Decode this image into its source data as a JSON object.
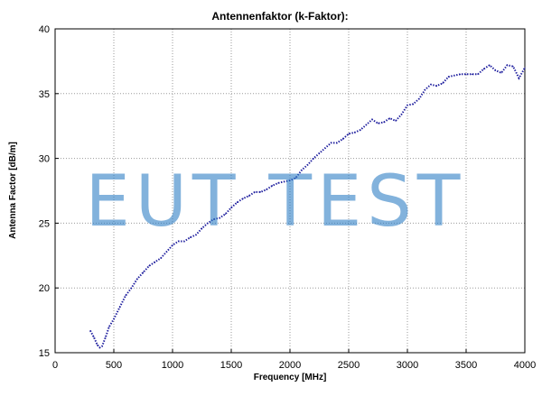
{
  "watermark": "EUT TEST",
  "chart_data": {
    "type": "line",
    "title": "Antennenfaktor (k-Faktor):",
    "xlabel": "Frequency [MHz]",
    "ylabel": "Antenna Factor [dB/m]",
    "xlim": [
      0,
      4000
    ],
    "ylim": [
      15,
      40
    ],
    "xticks": [
      0,
      500,
      1000,
      1500,
      2000,
      2500,
      3000,
      3500,
      4000
    ],
    "yticks": [
      15,
      20,
      25,
      30,
      35,
      40
    ],
    "grid": true,
    "line_style": "dotted",
    "line_color": "#1a1a9c",
    "series": [
      {
        "x": [
          300,
          330,
          360,
          380,
          400,
          430,
          460,
          500,
          550,
          600,
          650,
          700,
          750,
          800,
          850,
          900,
          950,
          1000,
          1050,
          1100,
          1150,
          1200,
          1250,
          1300,
          1350,
          1400,
          1450,
          1500,
          1550,
          1600,
          1650,
          1700,
          1750,
          1800,
          1850,
          1900,
          1950,
          2000,
          2050,
          2100,
          2150,
          2200,
          2250,
          2300,
          2350,
          2400,
          2450,
          2500,
          2550,
          2600,
          2650,
          2700,
          2750,
          2800,
          2850,
          2900,
          2950,
          3000,
          3050,
          3100,
          3150,
          3200,
          3250,
          3300,
          3350,
          3400,
          3450,
          3500,
          3550,
          3600,
          3650,
          3700,
          3750,
          3800,
          3850,
          3900,
          3950,
          4000
        ],
        "y": [
          16.7,
          16.2,
          15.6,
          15.4,
          15.5,
          16.2,
          17.0,
          17.6,
          18.5,
          19.4,
          20.0,
          20.7,
          21.2,
          21.7,
          22.0,
          22.3,
          22.8,
          23.3,
          23.6,
          23.6,
          23.9,
          24.1,
          24.6,
          25.0,
          25.3,
          25.4,
          25.7,
          26.2,
          26.6,
          26.9,
          27.1,
          27.4,
          27.4,
          27.6,
          27.9,
          28.1,
          28.2,
          28.3,
          28.5,
          29.1,
          29.5,
          30.0,
          30.4,
          30.8,
          31.2,
          31.2,
          31.5,
          31.9,
          32.0,
          32.2,
          32.6,
          33.0,
          32.7,
          32.8,
          33.1,
          32.9,
          33.4,
          34.1,
          34.2,
          34.6,
          35.3,
          35.7,
          35.6,
          35.8,
          36.3,
          36.4,
          36.5,
          36.5,
          36.5,
          36.5,
          36.9,
          37.2,
          36.8,
          36.6,
          37.2,
          37.1,
          36.2,
          37.0
        ]
      }
    ]
  }
}
